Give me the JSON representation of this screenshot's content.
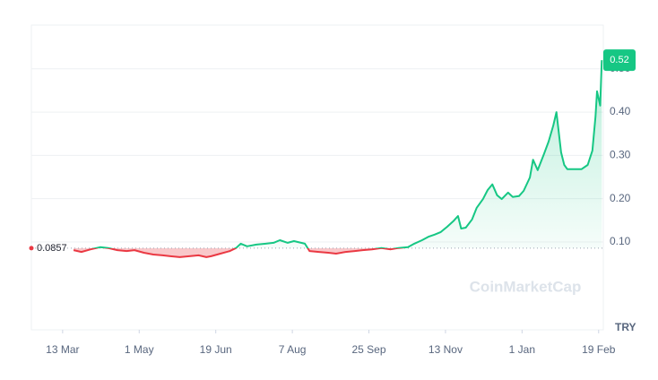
{
  "chart_data": {
    "type": "line",
    "currency": "TRY",
    "watermark": "CoinMarketCap",
    "baseline": 0.0857,
    "up_color": "#16c784",
    "down_color": "#ea3943",
    "grid": true,
    "xlim": [
      -20,
      346
    ],
    "xticks": [
      {
        "value": 0,
        "label": "13 Mar"
      },
      {
        "value": 49,
        "label": "1 May"
      },
      {
        "value": 98,
        "label": "19 Jun"
      },
      {
        "value": 147,
        "label": "7 Aug"
      },
      {
        "value": 196,
        "label": "25 Sep"
      },
      {
        "value": 245,
        "label": "13 Nov"
      },
      {
        "value": 294,
        "label": "1 Jan"
      },
      {
        "value": 343,
        "label": "19 Feb"
      }
    ],
    "ylim": [
      -0.103,
      0.601
    ],
    "yticks": [
      {
        "value": 0.1,
        "label": "0.10"
      },
      {
        "value": 0.2,
        "label": "0.20"
      },
      {
        "value": 0.3,
        "label": "0.30"
      },
      {
        "value": 0.4,
        "label": "0.40"
      },
      {
        "value": 0.5,
        "label": "0.50"
      }
    ],
    "x": [
      7,
      12,
      18,
      24,
      29,
      35,
      41,
      46,
      52,
      58,
      64,
      69,
      75,
      81,
      87,
      92,
      95,
      101,
      107,
      111,
      114,
      118,
      124,
      130,
      135,
      139,
      144,
      148,
      155,
      158,
      164,
      170,
      175,
      181,
      187,
      192,
      198,
      204,
      210,
      215,
      221,
      225,
      230,
      234,
      238,
      242,
      246,
      250,
      253,
      255,
      258,
      262,
      265,
      269,
      272,
      275,
      278,
      281,
      285,
      288,
      292,
      295,
      299,
      301,
      304,
      308,
      311,
      314,
      316,
      319,
      321,
      323,
      327,
      332,
      336,
      339,
      341,
      342,
      344,
      345
    ],
    "series": [
      {
        "values": [
          0.081,
          0.077,
          0.083,
          0.088,
          0.086,
          0.081,
          0.079,
          0.081,
          0.075,
          0.071,
          0.069,
          0.067,
          0.065,
          0.067,
          0.069,
          0.065,
          0.067,
          0.073,
          0.079,
          0.086,
          0.096,
          0.09,
          0.094,
          0.096,
          0.098,
          0.104,
          0.098,
          0.102,
          0.096,
          0.079,
          0.077,
          0.075,
          0.073,
          0.077,
          0.079,
          0.081,
          0.083,
          0.086,
          0.083,
          0.086,
          0.088,
          0.096,
          0.104,
          0.112,
          0.117,
          0.123,
          0.135,
          0.148,
          0.16,
          0.131,
          0.133,
          0.152,
          0.179,
          0.199,
          0.22,
          0.233,
          0.208,
          0.199,
          0.214,
          0.204,
          0.206,
          0.218,
          0.249,
          0.29,
          0.266,
          0.303,
          0.332,
          0.369,
          0.4,
          0.307,
          0.278,
          0.268,
          0.268,
          0.268,
          0.278,
          0.311,
          0.39,
          0.448,
          0.415,
          0.52
        ]
      }
    ]
  }
}
